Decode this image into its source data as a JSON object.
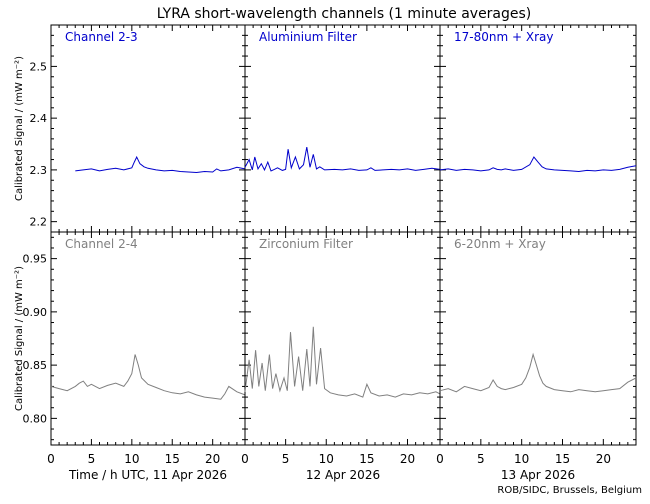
{
  "title": "LYRA short-wavelength channels (1 minute averages)",
  "credit": "ROB/SIDC, Brussels, Belgium",
  "colors": {
    "top_series": "#0000cc",
    "bottom_series": "#808080",
    "axes": "#000000",
    "background": "#ffffff"
  },
  "chart_data": [
    {
      "type": "line",
      "row": "top",
      "ylabel": "Calibrated Signal / (mW m⁻²)",
      "ylim": [
        2.18,
        2.58
      ],
      "yticks": [
        2.2,
        2.3,
        2.4,
        2.5
      ],
      "ytick_labels": [
        "2.2",
        "2.3",
        "2.4",
        "2.5"
      ],
      "grid": false,
      "panels": [
        {
          "name": "Channel 2-3",
          "x_hours": [
            3.0,
            4.0,
            5.0,
            6.0,
            7.0,
            8.0,
            9.0,
            10.0,
            10.3,
            10.6,
            11.0,
            11.5,
            12.0,
            13.0,
            14.0,
            15.0,
            16.0,
            17.0,
            18.0,
            19.0,
            20.0,
            20.5,
            21.0,
            22.0,
            23.0,
            24.0
          ],
          "values": [
            2.298,
            2.3,
            2.302,
            2.298,
            2.301,
            2.303,
            2.3,
            2.304,
            2.315,
            2.325,
            2.312,
            2.306,
            2.303,
            2.3,
            2.298,
            2.299,
            2.297,
            2.296,
            2.295,
            2.297,
            2.296,
            2.302,
            2.298,
            2.3,
            2.305,
            2.302
          ]
        },
        {
          "name": "Aluminium Filter",
          "x_hours": [
            0.0,
            0.5,
            0.9,
            1.2,
            1.6,
            2.0,
            2.4,
            2.8,
            3.2,
            3.6,
            4.0,
            4.6,
            5.0,
            5.3,
            5.7,
            6.2,
            6.7,
            7.2,
            7.6,
            8.0,
            8.4,
            8.8,
            9.2,
            9.8,
            11.0,
            12.0,
            13.0,
            14.0,
            15.0,
            15.5,
            16.0,
            17.0,
            18.0,
            19.0,
            20.0,
            21.0,
            22.0,
            23.0,
            24.0
          ],
          "values": [
            2.305,
            2.32,
            2.3,
            2.325,
            2.302,
            2.312,
            2.3,
            2.315,
            2.298,
            2.301,
            2.304,
            2.299,
            2.301,
            2.34,
            2.304,
            2.325,
            2.302,
            2.31,
            2.344,
            2.305,
            2.33,
            2.302,
            2.306,
            2.3,
            2.301,
            2.3,
            2.302,
            2.299,
            2.3,
            2.304,
            2.299,
            2.3,
            2.301,
            2.3,
            2.302,
            2.299,
            2.301,
            2.303,
            2.301
          ]
        },
        {
          "name": "17-80nm + Xray",
          "x_hours": [
            0.0,
            1.0,
            2.0,
            3.0,
            4.0,
            5.0,
            6.0,
            6.5,
            7.0,
            7.5,
            8.0,
            9.0,
            10.0,
            11.0,
            11.5,
            12.0,
            12.5,
            13.0,
            14.0,
            15.0,
            16.0,
            17.0,
            18.0,
            19.0,
            20.0,
            21.0,
            22.0,
            23.0,
            24.0
          ],
          "values": [
            2.3,
            2.302,
            2.299,
            2.301,
            2.3,
            2.298,
            2.3,
            2.304,
            2.301,
            2.3,
            2.302,
            2.299,
            2.301,
            2.31,
            2.325,
            2.315,
            2.306,
            2.302,
            2.3,
            2.299,
            2.298,
            2.297,
            2.299,
            2.298,
            2.3,
            2.299,
            2.301,
            2.305,
            2.308
          ]
        }
      ]
    },
    {
      "type": "line",
      "row": "bottom",
      "ylabel": "Calibrated Signal / (mW m⁻²)",
      "ylim": [
        0.775,
        0.975
      ],
      "yticks": [
        0.8,
        0.85,
        0.9,
        0.95
      ],
      "ytick_labels": [
        "0.80",
        "0.85",
        "0.90",
        "0.95"
      ],
      "grid": false,
      "panels": [
        {
          "name": "Channel 2-4",
          "x_hours": [
            0.0,
            1.0,
            2.0,
            3.0,
            3.5,
            4.0,
            4.5,
            5.0,
            6.0,
            7.0,
            8.0,
            9.0,
            9.5,
            10.0,
            10.4,
            10.8,
            11.2,
            12.0,
            13.0,
            14.0,
            15.0,
            16.0,
            17.0,
            18.0,
            19.0,
            20.0,
            21.0,
            21.5,
            22.0,
            23.0,
            24.0
          ],
          "values": [
            0.83,
            0.828,
            0.826,
            0.83,
            0.833,
            0.835,
            0.83,
            0.832,
            0.828,
            0.831,
            0.833,
            0.83,
            0.835,
            0.842,
            0.86,
            0.85,
            0.838,
            0.832,
            0.829,
            0.826,
            0.824,
            0.823,
            0.825,
            0.822,
            0.82,
            0.819,
            0.818,
            0.823,
            0.83,
            0.825,
            0.822
          ]
        },
        {
          "name": "Zirconium Filter",
          "x_hours": [
            0.0,
            0.5,
            0.9,
            1.3,
            1.7,
            2.1,
            2.5,
            3.0,
            3.4,
            3.8,
            4.3,
            4.8,
            5.2,
            5.6,
            6.1,
            6.6,
            7.1,
            7.6,
            8.0,
            8.4,
            8.8,
            9.3,
            9.8,
            10.5,
            11.5,
            12.5,
            13.5,
            14.5,
            15.0,
            15.5,
            16.5,
            17.5,
            18.5,
            19.5,
            20.5,
            21.5,
            22.5,
            23.5,
            24.0
          ],
          "values": [
            0.825,
            0.855,
            0.828,
            0.864,
            0.83,
            0.852,
            0.826,
            0.86,
            0.828,
            0.842,
            0.826,
            0.838,
            0.826,
            0.881,
            0.83,
            0.858,
            0.826,
            0.865,
            0.83,
            0.886,
            0.832,
            0.866,
            0.828,
            0.824,
            0.822,
            0.821,
            0.823,
            0.82,
            0.832,
            0.824,
            0.821,
            0.822,
            0.82,
            0.823,
            0.822,
            0.824,
            0.823,
            0.825,
            0.823
          ]
        },
        {
          "name": "6-20nm + Xray",
          "x_hours": [
            0.0,
            1.0,
            2.0,
            3.0,
            4.0,
            5.0,
            6.0,
            6.5,
            7.0,
            7.5,
            8.0,
            9.0,
            10.0,
            10.5,
            11.0,
            11.4,
            11.8,
            12.2,
            12.6,
            13.0,
            14.0,
            15.0,
            16.0,
            17.0,
            18.0,
            19.0,
            20.0,
            21.0,
            22.0,
            23.0,
            24.0
          ],
          "values": [
            0.826,
            0.828,
            0.825,
            0.83,
            0.828,
            0.826,
            0.829,
            0.836,
            0.83,
            0.828,
            0.827,
            0.829,
            0.832,
            0.838,
            0.848,
            0.86,
            0.85,
            0.84,
            0.833,
            0.83,
            0.827,
            0.826,
            0.825,
            0.827,
            0.826,
            0.825,
            0.826,
            0.827,
            0.828,
            0.834,
            0.838
          ]
        }
      ]
    }
  ],
  "x_axis": {
    "xlim_hours": [
      0,
      24
    ],
    "major_ticks": [
      0,
      5,
      10,
      15,
      20
    ],
    "tick_labels": [
      "0",
      "5",
      "10",
      "15",
      "20"
    ],
    "minor_step_hours": 1,
    "day_labels": [
      "Time / h UTC, 11 Apr 2026",
      "12 Apr 2026",
      "13 Apr 2026"
    ]
  }
}
